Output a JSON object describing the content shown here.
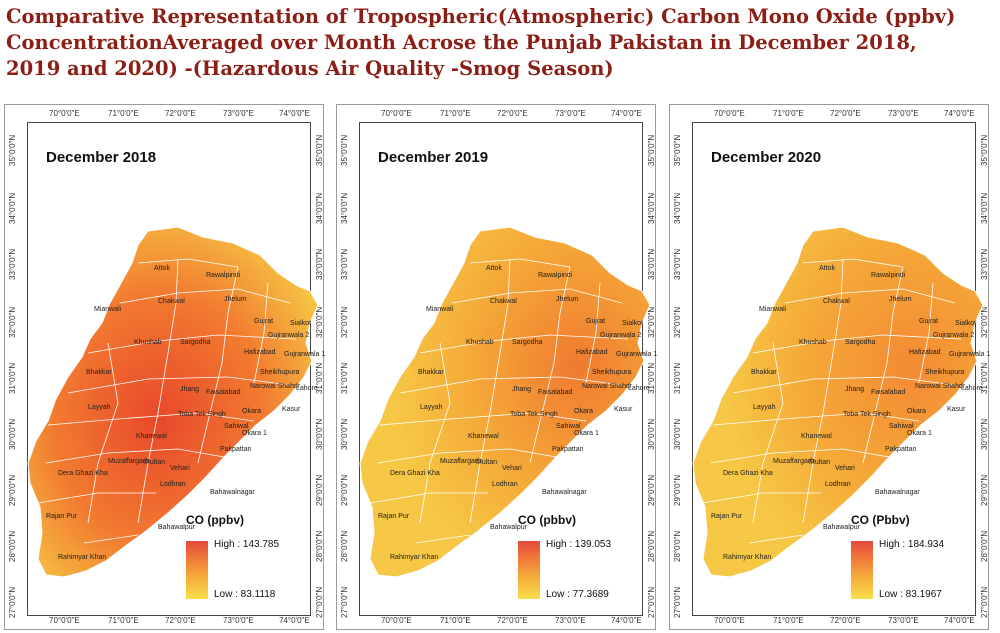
{
  "title": {
    "line1": "Comparative Representation of Tropospheric(Atmospheric) Carbon Mono Oxide (ppbv)",
    "line2": "ConcentrationAveraged over Month Acrose the Punjab Pakistan in December 2018,",
    "line3": "2019 and 2020) -(Hazardous Air Quality -Smog Season)"
  },
  "lon_ticks": [
    "70°0'0\"E",
    "71°0'0\"E",
    "72°0'0\"E",
    "73°0'0\"E",
    "74°0'0\"E"
  ],
  "lat_ticks": [
    "35°0'0\"N",
    "34°0'0\"N",
    "33°0'0\"N",
    "32°0'0\"N",
    "31°0'0\"N",
    "30°0'0\"N",
    "29°0'0\"N",
    "28°0'0\"N",
    "27°0'0\"N"
  ],
  "districts": [
    "Attok",
    "Rawalpindi",
    "Chakwal",
    "Jhelum",
    "Mianwali",
    "Gujrat",
    "Sialkot",
    "Khushab",
    "Gujranwala 2",
    "Sargodha",
    "Hafizabad",
    "Gujranwala 1",
    "Bhakkar",
    "Sheikhupura",
    "Narowal Shahdr",
    "Lahore",
    "Jhang",
    "Faisalabad",
    "Layyah",
    "Toba Tek Singh",
    "Okara",
    "Kasur",
    "Sahiwal",
    "Okara 1",
    "Khanewal",
    "Muzaffargarh",
    "Multan",
    "Pakpattan",
    "Dera Ghazi Kha",
    "Vehari",
    "Lodhran",
    "Bahawalnagar",
    "Rajan Pur",
    "Bahawalpur",
    "Rahimyar Khan"
  ],
  "panels": [
    {
      "title": "December 2018",
      "legend_title": "CO (ppbv)",
      "high": "High : 143.785",
      "low": "Low : 83.1118",
      "high_value": 143.785,
      "low_value": 83.1118
    },
    {
      "title": "December 2019",
      "legend_title": "CO (pbbv)",
      "high": "High : 139.053",
      "low": "Low : 77.3689",
      "high_value": 139.053,
      "low_value": 77.3689
    },
    {
      "title": "December 2020",
      "legend_title": "CO (Pbbv)",
      "high": "High : 184.934",
      "low": "Low : 83.1967",
      "high_value": 184.934,
      "low_value": 83.1967
    }
  ],
  "colors": {
    "title": "#8b1f16",
    "high": "#e34a3c",
    "low": "#f8e04a"
  }
}
